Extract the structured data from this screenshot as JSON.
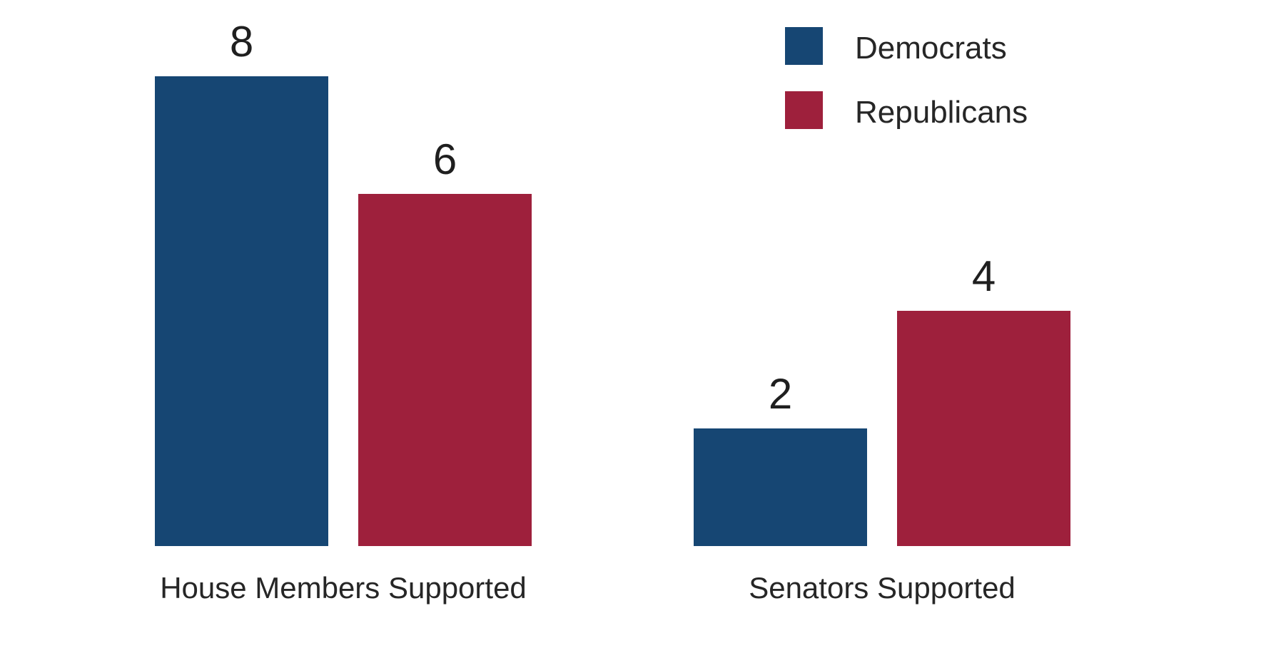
{
  "page": {
    "background_color": "#ffffff",
    "text_color": "#262626"
  },
  "chart_data": {
    "type": "bar",
    "title": "",
    "xlabel": "",
    "ylabel": "",
    "categories": [
      "House Members Supported",
      "Senators Supported"
    ],
    "series": [
      {
        "name": "Democrats",
        "color": "#164673",
        "values": [
          8,
          2
        ]
      },
      {
        "name": "Republicans",
        "color": "#9e203c",
        "values": [
          6,
          4
        ]
      }
    ],
    "ylim": [
      0,
      9.3
    ],
    "grid": false,
    "axes_visible": false,
    "bar_value_labels_shown": true,
    "legend_position": "top-right"
  }
}
